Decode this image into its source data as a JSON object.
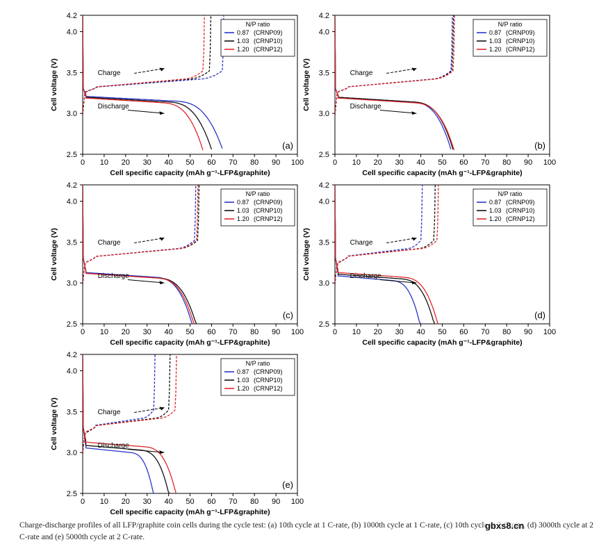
{
  "figure": {
    "caption": "Charge-discharge profiles of all LFP/graphite coin cells during the cycle test: (a) 10th cycle at 1 C-rate, (b) 1000th cycle at 1 C-rate, (c) 10th cycle at 2 C-rate, (d) 3000th cycle at 2 C-rate and (e) 5000th cycle at 2 C-rate.",
    "watermark": "gbxs8.cn"
  },
  "colors": {
    "blue": "#2b35c9",
    "black": "#111111",
    "red": "#e0262a"
  },
  "chart_data": [
    {
      "type": "line",
      "panel_label": "(a)",
      "xlabel": "Cell specific capacity (mAh g⁻¹-LFP&graphite)",
      "ylabel": "Cell voltage (V)",
      "xlim": [
        0,
        100
      ],
      "ylim": [
        2.5,
        4.2
      ],
      "xticks": [
        "0",
        "10",
        "20",
        "30",
        "40",
        "50",
        "60",
        "70",
        "80",
        "90",
        "100"
      ],
      "yticks": [
        "2.5",
        "3.0",
        "3.5",
        "4.0",
        "4.2"
      ],
      "legend_title": "N/P ratio",
      "legend_position": "top-right",
      "annotations": {
        "charge": "Charge",
        "discharge": "Discharge"
      },
      "series": [
        {
          "name": "0.87 (CRNP09)",
          "np": "0.87",
          "code": "(CRNP09)",
          "color": "blue",
          "charge_end": 65,
          "discharge_end": 65,
          "plateau": 3.21
        },
        {
          "name": "1.03 (CRNP10)",
          "np": "1.03",
          "code": "(CRNP10)",
          "color": "black",
          "charge_end": 59,
          "discharge_end": 60,
          "plateau": 3.2
        },
        {
          "name": "1.20 (CRNP12)",
          "np": "1.20",
          "code": "(CRNP12)",
          "color": "red",
          "charge_end": 56,
          "discharge_end": 56,
          "plateau": 3.19
        }
      ]
    },
    {
      "type": "line",
      "panel_label": "(b)",
      "xlabel": "Cell specific capacity (mAh g⁻¹-LFP&graphite)",
      "ylabel": "Cell voltage (V)",
      "xlim": [
        0,
        100
      ],
      "ylim": [
        2.5,
        4.2
      ],
      "xticks": [
        "0",
        "10",
        "20",
        "30",
        "40",
        "50",
        "60",
        "70",
        "80",
        "90",
        "100"
      ],
      "yticks": [
        "2.5",
        "3.0",
        "3.5",
        "4.0",
        "4.2"
      ],
      "legend_title": "N/P ratio",
      "legend_position": "top-right",
      "annotations": {
        "charge": "Charge",
        "discharge": "Discharge"
      },
      "series": [
        {
          "name": "0.87 (CRNP09)",
          "np": "0.87",
          "code": "(CRNP09)",
          "color": "blue",
          "charge_end": 54,
          "discharge_end": 54,
          "plateau": 3.2
        },
        {
          "name": "1.03 (CRNP10)",
          "np": "1.03",
          "code": "(CRNP10)",
          "color": "black",
          "charge_end": 54.5,
          "discharge_end": 55,
          "plateau": 3.2
        },
        {
          "name": "1.20 (CRNP12)",
          "np": "1.20",
          "code": "(CRNP12)",
          "color": "red",
          "charge_end": 55,
          "discharge_end": 55.5,
          "plateau": 3.19
        }
      ]
    },
    {
      "type": "line",
      "panel_label": "(c)",
      "xlabel": "Cell specific capacity (mAh g⁻¹-LFP&graphite)",
      "ylabel": "Cell voltage (V)",
      "xlim": [
        0,
        100
      ],
      "ylim": [
        2.5,
        4.2
      ],
      "xticks": [
        "0",
        "10",
        "20",
        "30",
        "40",
        "50",
        "60",
        "70",
        "80",
        "90",
        "100"
      ],
      "yticks": [
        "2.5",
        "3.0",
        "3.5",
        "4.0",
        "4.2"
      ],
      "legend_title": "N/P ratio",
      "legend_position": "top-right",
      "annotations": {
        "charge": "Charge",
        "discharge": "Discharge"
      },
      "series": [
        {
          "name": "0.87 (CRNP09)",
          "np": "0.87",
          "code": "(CRNP09)",
          "color": "blue",
          "charge_end": 52,
          "discharge_end": 51,
          "plateau": 3.13
        },
        {
          "name": "1.03 (CRNP10)",
          "np": "1.03",
          "code": "(CRNP10)",
          "color": "black",
          "charge_end": 53.5,
          "discharge_end": 53,
          "plateau": 3.12
        },
        {
          "name": "1.20 (CRNP12)",
          "np": "1.20",
          "code": "(CRNP12)",
          "color": "red",
          "charge_end": 53,
          "discharge_end": 52,
          "plateau": 3.12
        }
      ]
    },
    {
      "type": "line",
      "panel_label": "(d)",
      "xlabel": "Cell specific capacity (mAh g⁻¹-LFP&graphite)",
      "ylabel": "Cell voltage (V)",
      "xlim": [
        0,
        100
      ],
      "ylim": [
        2.5,
        4.2
      ],
      "xticks": [
        "0",
        "10",
        "20",
        "30",
        "40",
        "50",
        "60",
        "70",
        "80",
        "90",
        "100"
      ],
      "yticks": [
        "2.5",
        "3.0",
        "3.5",
        "4.0",
        "4.2"
      ],
      "legend_title": "N/P ratio",
      "legend_position": "top-right",
      "annotations": {
        "charge": "Charge",
        "discharge": "Discharge"
      },
      "series": [
        {
          "name": "0.87 (CRNP09)",
          "np": "0.87",
          "code": "(CRNP09)",
          "color": "blue",
          "charge_end": 40,
          "discharge_end": 40,
          "plateau": 3.09
        },
        {
          "name": "1.03 (CRNP10)",
          "np": "1.03",
          "code": "(CRNP10)",
          "color": "black",
          "charge_end": 46,
          "discharge_end": 46.5,
          "plateau": 3.11
        },
        {
          "name": "1.20 (CRNP12)",
          "np": "1.20",
          "code": "(CRNP12)",
          "color": "red",
          "charge_end": 47.5,
          "discharge_end": 48,
          "plateau": 3.13
        }
      ]
    },
    {
      "type": "line",
      "panel_label": "(e)",
      "xlabel": "Cell specific capacity (mAh g⁻¹-LFP&graphite)",
      "ylabel": "Cell voltage (V)",
      "xlim": [
        0,
        100
      ],
      "ylim": [
        2.5,
        4.2
      ],
      "xticks": [
        "0",
        "10",
        "20",
        "30",
        "40",
        "50",
        "60",
        "70",
        "80",
        "90",
        "100"
      ],
      "yticks": [
        "2.5",
        "3.0",
        "3.5",
        "4.0",
        "4.2"
      ],
      "legend_title": "N/P ratio",
      "legend_position": "top-right",
      "annotations": {
        "charge": "Charge",
        "discharge": "Discharge"
      },
      "series": [
        {
          "name": "0.87 (CRNP09)",
          "np": "0.87",
          "code": "(CRNP09)",
          "color": "blue",
          "charge_end": 33,
          "discharge_end": 33.5,
          "plateau": 3.06
        },
        {
          "name": "1.03 (CRNP10)",
          "np": "1.03",
          "code": "(CRNP10)",
          "color": "black",
          "charge_end": 40,
          "discharge_end": 40.5,
          "plateau": 3.09
        },
        {
          "name": "1.20 (CRNP12)",
          "np": "1.20",
          "code": "(CRNP12)",
          "color": "red",
          "charge_end": 43,
          "discharge_end": 43.5,
          "plateau": 3.13
        }
      ]
    }
  ]
}
